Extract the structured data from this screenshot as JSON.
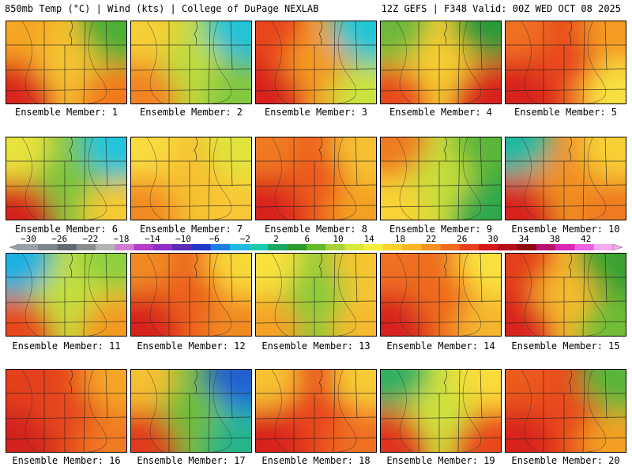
{
  "header": {
    "left": "850mb Temp (°C) | Wind (kts) | College of DuPage NEXLAB",
    "right": "12Z GEFS | F348 Valid: 00Z WED OCT 08 2025"
  },
  "colorbar": {
    "labels": [
      "-30",
      "-26",
      "-22",
      "-18",
      "-14",
      "-10",
      "-6",
      "-2",
      "2",
      "6",
      "10",
      "14",
      "18",
      "22",
      "26",
      "30",
      "34",
      "38",
      "42"
    ],
    "colors": [
      "#9aa0a6",
      "#7d858a",
      "#646b70",
      "#8c8c8c",
      "#b4b4b4",
      "#d07cd2",
      "#b23cc8",
      "#8f2fc3",
      "#5a2ab5",
      "#2138c9",
      "#1f7fe0",
      "#21b8e6",
      "#1fc9b0",
      "#19a860",
      "#2a9a2a",
      "#64b92a",
      "#a8d23a",
      "#d8e83a",
      "#f6f03c",
      "#fcd22c",
      "#fab428",
      "#f7901f",
      "#f26a1c",
      "#e8411c",
      "#d6161e",
      "#b40e16",
      "#8c0a12",
      "#b8126e",
      "#dc28b4",
      "#ef62e2",
      "#f6aaf0"
    ]
  },
  "members": [
    {
      "label": "Ensemble Member: 1",
      "g": {
        "w": "#f05a1e",
        "e": "#8ed03a",
        "nw": "#f5a623",
        "ne": "#4cae35",
        "sw": "#d9261c",
        "se": "#f27a1e",
        "c": "#f5c231"
      }
    },
    {
      "label": "Ensemble Member: 2",
      "g": {
        "w": "#f2a52a",
        "e": "#2d9d3a",
        "nw": "#f7cf35",
        "ne": "#20c3d8",
        "sw": "#f48221",
        "se": "#84c941",
        "c": "#bedb3c"
      }
    },
    {
      "label": "Ensemble Member: 3",
      "g": {
        "w": "#e63a1c",
        "e": "#2fb86b",
        "nw": "#e8441c",
        "ne": "#20c7d4",
        "sw": "#d8211d",
        "se": "#cde33d",
        "c": "#f49a24"
      }
    },
    {
      "label": "Ensemble Member: 4",
      "g": {
        "w": "#cfe23c",
        "e": "#f07520",
        "nw": "#6db83a",
        "ne": "#2a9a38",
        "sw": "#e84a1c",
        "se": "#d8231d",
        "c": "#f6cd32"
      }
    },
    {
      "label": "Ensemble Member: 5",
      "g": {
        "w": "#e43a1c",
        "e": "#f7c63a",
        "nw": "#f07020",
        "ne": "#f49a24",
        "sw": "#d8211d",
        "se": "#f8e040",
        "c": "#e8461c"
      }
    },
    {
      "label": "Ensemble Member: 6",
      "g": {
        "w": "#f6d637",
        "e": "#2fae4a",
        "nw": "#e8e23e",
        "ne": "#21c5dc",
        "sw": "#d4211d",
        "se": "#f5cb33",
        "c": "#7dc43e"
      }
    },
    {
      "label": "Ensemble Member: 7",
      "g": {
        "w": "#f5b02a",
        "e": "#f7dd3a",
        "nw": "#f9dc40",
        "ne": "#dfe43e",
        "sw": "#f28a21",
        "se": "#f8c734",
        "c": "#f6c030"
      }
    },
    {
      "label": "Ensemble Member: 8",
      "g": {
        "w": "#e43e1c",
        "e": "#f9d535",
        "nw": "#f07a20",
        "ne": "#f6c030",
        "sw": "#d8221c",
        "se": "#f4a024",
        "c": "#ec5a1e"
      }
    },
    {
      "label": "Ensemble Member: 9",
      "g": {
        "w": "#f5c631",
        "e": "#33a838",
        "nw": "#f07a20",
        "ne": "#5ab63a",
        "sw": "#f9d335",
        "se": "#2ea84c",
        "c": "#c6de3a"
      }
    },
    {
      "label": "Ensemble Member: 10",
      "g": {
        "w": "#e6461c",
        "e": "#f6ba2e",
        "nw": "#22b8a0",
        "ne": "#f7d035",
        "sw": "#d6241c",
        "se": "#f07a20",
        "c": "#f09022"
      }
    },
    {
      "label": "Ensemble Member: 11",
      "g": {
        "w": "#4fb43a",
        "e": "#f7d236",
        "nw": "#1fb0e3",
        "ne": "#8ed03e",
        "sw": "#e8461c",
        "se": "#f39a24",
        "c": "#c3de3c"
      }
    },
    {
      "label": "Ensemble Member: 12",
      "g": {
        "w": "#e43e1c",
        "e": "#f7c834",
        "nw": "#f08a22",
        "ne": "#f9d837",
        "sw": "#d8221c",
        "se": "#f28a22",
        "c": "#ec601e"
      }
    },
    {
      "label": "Ensemble Member: 13",
      "g": {
        "w": "#f7d536",
        "e": "#f9da3a",
        "nw": "#f9e13e",
        "ne": "#f5c531",
        "sw": "#f4a225",
        "se": "#f6ba2e",
        "c": "#8cca3a"
      }
    },
    {
      "label": "Ensemble Member: 14",
      "g": {
        "w": "#e2361c",
        "e": "#f9d435",
        "nw": "#f07020",
        "ne": "#f9e23e",
        "sw": "#d6231c",
        "se": "#f5b52d",
        "c": "#ee6a1f"
      }
    },
    {
      "label": "Ensemble Member: 15",
      "g": {
        "w": "#e13a1c",
        "e": "#2f9c2e",
        "nw": "#e4401c",
        "ne": "#3aa230",
        "sw": "#d8231c",
        "se": "#6fbd36",
        "c": "#f6ba2e"
      }
    },
    {
      "label": "Ensemble Member: 16",
      "g": {
        "w": "#d92a1c",
        "e": "#f28a22",
        "nw": "#e4401c",
        "ne": "#f5a625",
        "sw": "#d2201c",
        "se": "#f07a20",
        "c": "#e6461c"
      }
    },
    {
      "label": "Ensemble Member: 17",
      "g": {
        "w": "#f07a20",
        "e": "#22c2e0",
        "nw": "#f5c031",
        "ne": "#2060d0",
        "sw": "#e03a1c",
        "se": "#27b48a",
        "c": "#6dbd3a"
      }
    },
    {
      "label": "Ensemble Member: 18",
      "g": {
        "w": "#e2361c",
        "e": "#f28022",
        "nw": "#f6c131",
        "ne": "#f7cc34",
        "sw": "#d8211c",
        "se": "#f07020",
        "c": "#e8461c"
      }
    },
    {
      "label": "Ensemble Member: 19",
      "g": {
        "w": "#f07a20",
        "e": "#f28a22",
        "nw": "#32b060",
        "ne": "#f9dc3a",
        "sw": "#e0321c",
        "se": "#e8461c",
        "c": "#cde23c"
      }
    },
    {
      "label": "Ensemble Member: 20",
      "g": {
        "w": "#e0341c",
        "e": "#6fbd36",
        "nw": "#ec5a1e",
        "ne": "#5ab53a",
        "sw": "#d8211c",
        "se": "#f4a024",
        "c": "#e8461c"
      }
    }
  ]
}
